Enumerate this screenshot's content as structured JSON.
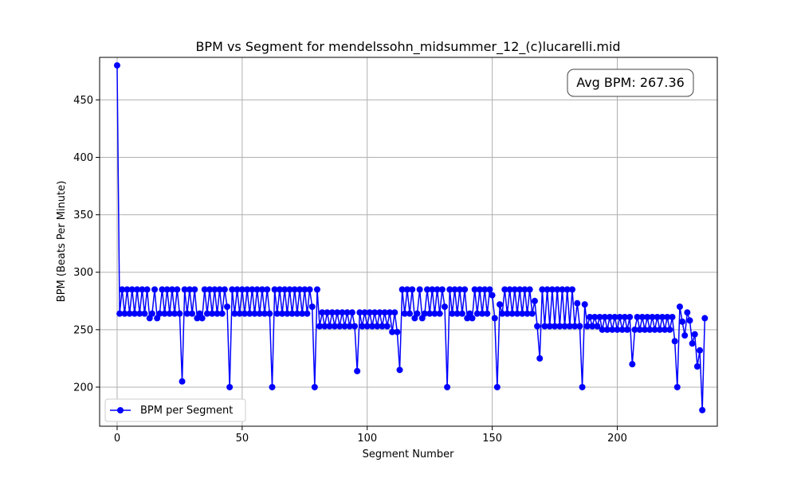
{
  "chart_data": {
    "type": "line",
    "title": "BPM vs Segment for mendelssohn_midsummer_12_(c)lucarelli.mid",
    "xlabel": "Segment Number",
    "ylabel": "BPM (Beats Per Minute)",
    "xlim": [
      -7,
      240
    ],
    "ylim": [
      166,
      487
    ],
    "xticks": [
      0,
      50,
      100,
      150,
      200
    ],
    "yticks": [
      200,
      250,
      300,
      350,
      400,
      450
    ],
    "grid": true,
    "legend": "bottom-left",
    "annotation": "Avg BPM: 267.36",
    "series": [
      {
        "name": "BPM per Segment",
        "color": "#0000ff",
        "marker": "circle",
        "values": [
          480,
          264,
          285,
          264,
          285,
          264,
          285,
          264,
          285,
          264,
          285,
          264,
          285,
          260,
          264,
          285,
          260,
          264,
          285,
          264,
          285,
          264,
          285,
          264,
          285,
          264,
          205,
          285,
          264,
          285,
          264,
          285,
          260,
          264,
          260,
          285,
          264,
          285,
          264,
          285,
          264,
          285,
          264,
          285,
          270,
          200,
          285,
          264,
          285,
          264,
          285,
          264,
          285,
          264,
          285,
          264,
          285,
          264,
          285,
          264,
          285,
          264,
          200,
          285,
          264,
          285,
          264,
          285,
          264,
          285,
          264,
          285,
          264,
          285,
          264,
          285,
          264,
          285,
          270,
          200,
          285,
          253,
          265,
          253,
          265,
          253,
          265,
          253,
          265,
          253,
          265,
          253,
          265,
          253,
          265,
          253,
          214,
          265,
          253,
          265,
          253,
          265,
          253,
          265,
          253,
          265,
          253,
          265,
          253,
          265,
          248,
          265,
          248,
          215,
          285,
          264,
          285,
          264,
          285,
          260,
          264,
          285,
          260,
          264,
          285,
          264,
          285,
          264,
          285,
          264,
          285,
          270,
          200,
          285,
          264,
          285,
          264,
          285,
          264,
          285,
          260,
          264,
          260,
          285,
          264,
          285,
          264,
          285,
          264,
          285,
          280,
          260,
          200,
          272,
          264,
          285,
          264,
          285,
          264,
          285,
          264,
          285,
          264,
          285,
          264,
          285,
          264,
          275,
          253,
          225,
          285,
          253,
          285,
          253,
          285,
          253,
          285,
          253,
          285,
          253,
          285,
          253,
          285,
          253,
          273,
          253,
          200,
          272,
          253,
          261,
          253,
          261,
          253,
          261,
          250,
          261,
          250,
          261,
          250,
          261,
          250,
          261,
          250,
          261,
          250,
          261,
          220,
          250,
          261,
          250,
          261,
          250,
          261,
          250,
          261,
          250,
          261,
          250,
          261,
          250,
          261,
          250,
          261,
          240,
          200,
          270,
          257,
          245,
          265,
          258,
          238,
          246,
          218,
          232,
          180,
          260
        ]
      }
    ]
  }
}
